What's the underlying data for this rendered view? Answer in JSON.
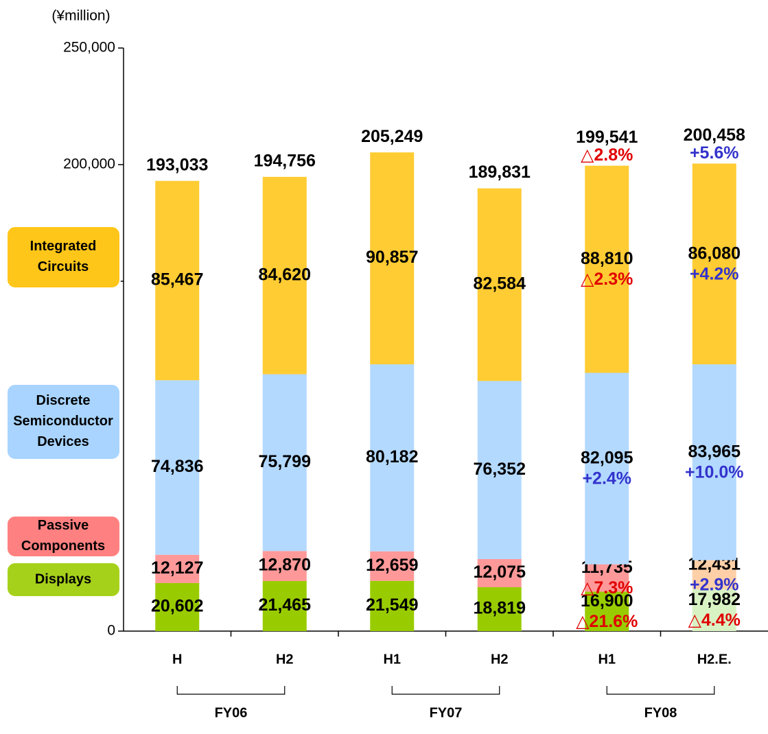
{
  "chart_data": {
    "type": "stacked_bar",
    "unit_label": "(¥million)",
    "categories": [
      "H",
      "H2",
      "H1",
      "H2",
      "H1",
      "H2.E."
    ],
    "groups": [
      {
        "label": "FY06",
        "from": 0,
        "to": 1
      },
      {
        "label": "FY07",
        "from": 2,
        "to": 3
      },
      {
        "label": "FY08",
        "from": 4,
        "to": 5
      }
    ],
    "series": [
      {
        "name": "Displays",
        "color": "#99cc00",
        "colors": [
          "#99cc00",
          "#99cc00",
          "#99cc00",
          "#99cc00",
          "#99cc00",
          "#d9f2c4"
        ],
        "legend_color": "#a6d11a",
        "values": [
          20602,
          21465,
          21549,
          18819,
          16900,
          17982
        ],
        "value_labels": [
          "20,602",
          "21,465",
          "21,549",
          "18,819",
          "16,900",
          "17,982"
        ],
        "changes": [
          null,
          null,
          null,
          null,
          {
            "label": "△21.6%",
            "color": "#e00000"
          },
          {
            "label": "△4.4%",
            "color": "#e00000"
          }
        ]
      },
      {
        "name": "Passive Components",
        "color": "#ff9999",
        "colors": [
          "#ff9999",
          "#ff9999",
          "#ff9999",
          "#ff9999",
          "#ff9999",
          "#ffd0a8"
        ],
        "legend_color": "#ff8080",
        "values": [
          12127,
          12870,
          12659,
          12075,
          11735,
          12431
        ],
        "value_labels": [
          "12,127",
          "12,870",
          "12,659",
          "12,075",
          "11,735",
          "12,431"
        ],
        "changes": [
          null,
          null,
          null,
          null,
          {
            "label": "△7.3%",
            "color": "#e00000"
          },
          {
            "label": "+2.9%",
            "color": "#3333cc"
          }
        ]
      },
      {
        "name": "Discrete Semiconductor Devices",
        "color": "#b3d9ff",
        "colors": [
          "#b3d9ff",
          "#b3d9ff",
          "#b3d9ff",
          "#b3d9ff",
          "#b3d9ff",
          "#b3d9ff"
        ],
        "legend_color": "#a8d4ff",
        "values": [
          74836,
          75799,
          80182,
          76352,
          82095,
          83965
        ],
        "value_labels": [
          "74,836",
          "75,799",
          "80,182",
          "76,352",
          "82,095",
          "83,965"
        ],
        "changes": [
          null,
          null,
          null,
          null,
          {
            "label": "+2.4%",
            "color": "#3333cc"
          },
          {
            "label": "+10.0%",
            "color": "#3333cc"
          }
        ]
      },
      {
        "name": "Integrated Circuits",
        "color": "#ffcc33",
        "colors": [
          "#ffcc33",
          "#ffcc33",
          "#ffcc33",
          "#ffcc33",
          "#ffcc33",
          "#ffcc33"
        ],
        "legend_color": "#ffc61a",
        "values": [
          85467,
          84620,
          90857,
          82584,
          88810,
          86080
        ],
        "value_labels": [
          "85,467",
          "84,620",
          "90,857",
          "82,584",
          "88,810",
          "86,080"
        ],
        "changes": [
          null,
          null,
          null,
          null,
          {
            "label": "△2.3%",
            "color": "#e00000"
          },
          {
            "label": "+4.2%",
            "color": "#3333cc"
          }
        ]
      }
    ],
    "totals": [
      193033,
      194756,
      205249,
      189831,
      199541,
      200458
    ],
    "total_labels": [
      "193,033",
      "194,756",
      "205,249",
      "189,831",
      "199,541",
      "200,458"
    ],
    "total_changes": [
      null,
      null,
      null,
      null,
      {
        "label": "△2.8%",
        "color": "#e00000"
      },
      {
        "label": "+5.6%",
        "color": "#3333cc"
      }
    ],
    "ylim": [
      0,
      250000
    ],
    "yticks": [
      {
        "value": 0,
        "label": "0"
      },
      {
        "value": 150000,
        "label": "150,000"
      },
      {
        "value": 200000,
        "label": "200,000"
      },
      {
        "value": 250000,
        "label": "250,000"
      }
    ]
  }
}
